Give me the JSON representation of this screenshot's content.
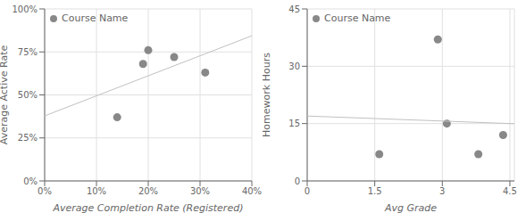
{
  "chart_data": [
    {
      "type": "scatter",
      "xlabel": "Average Completion Rate (Registered)",
      "ylabel": "Average Active Rate",
      "xlim": [
        0.0,
        0.4
      ],
      "ylim": [
        0.0,
        1.0
      ],
      "xticks": [
        {
          "value": 0.0,
          "label": "0%"
        },
        {
          "value": 0.1,
          "label": "10%"
        },
        {
          "value": 0.2,
          "label": "20%"
        },
        {
          "value": 0.3,
          "label": "30%"
        },
        {
          "value": 0.4,
          "label": "40%"
        }
      ],
      "yticks": [
        {
          "value": 0.0,
          "label": "0%"
        },
        {
          "value": 0.25,
          "label": "25%"
        },
        {
          "value": 0.5,
          "label": "50%"
        },
        {
          "value": 0.75,
          "label": "75%"
        },
        {
          "value": 1.0,
          "label": "100%"
        }
      ],
      "grid": true,
      "legend": "upper left",
      "series": [
        {
          "name": "Course Name",
          "type": "scatter",
          "marker": "circle",
          "color": "#888888",
          "x": [
            0.14,
            0.19,
            0.2,
            0.25,
            0.31
          ],
          "values": [
            0.37,
            0.68,
            0.76,
            0.72,
            0.63
          ]
        },
        {
          "type": "line",
          "color": "#c0c0c0",
          "x": [
            0.0,
            0.4
          ],
          "values": [
            0.3782,
            0.8439
          ]
        }
      ]
    },
    {
      "type": "scatter",
      "xlabel": "Avg Grade",
      "ylabel": "Homework Hours",
      "xlim": [
        0,
        4.6
      ],
      "ylim": [
        0,
        45
      ],
      "xticks": [
        0,
        1.5,
        3,
        4.5
      ],
      "yticks": [
        0,
        15,
        30,
        45
      ],
      "grid": true,
      "legend": "upper left",
      "series": [
        {
          "name": "Course Name",
          "type": "scatter",
          "marker": "circle",
          "color": "#888888",
          "x": [
            1.6,
            2.9,
            3.1,
            3.8,
            4.35
          ],
          "values": [
            7,
            37,
            15,
            7,
            12
          ]
        },
        {
          "type": "line",
          "color": "#c0c0c0",
          "x": [
            0,
            4.6
          ],
          "values": [
            16.98,
            14.96
          ]
        }
      ]
    }
  ]
}
